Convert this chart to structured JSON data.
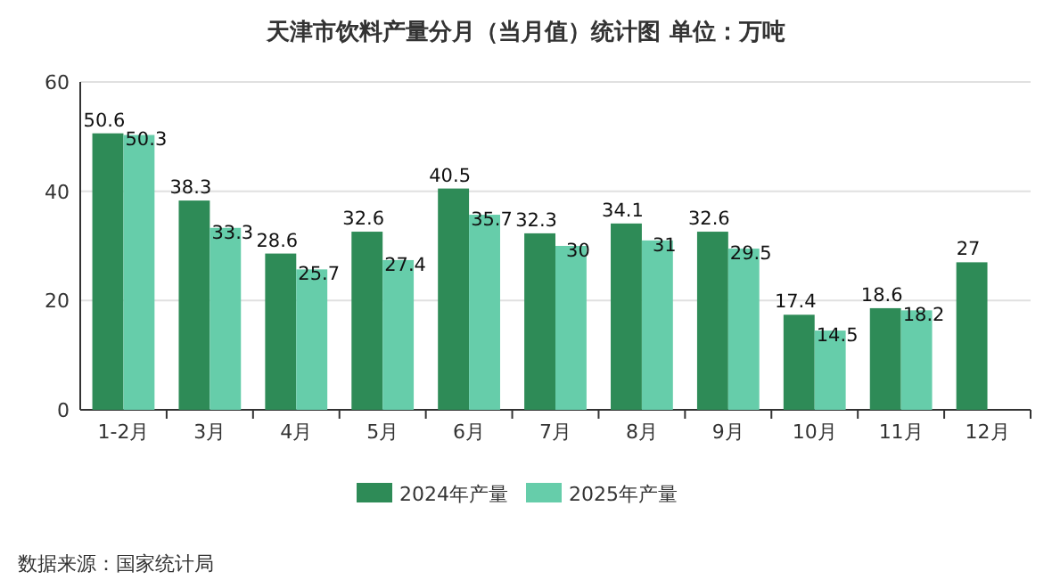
{
  "chart_data": {
    "type": "bar",
    "title": "天津市饮料产量分月（当月值）统计图 单位：万吨",
    "categories": [
      "1-2月",
      "3月",
      "4月",
      "5月",
      "6月",
      "7月",
      "8月",
      "9月",
      "10月",
      "11月",
      "12月"
    ],
    "series": [
      {
        "name": "2024年产量",
        "color": "#2e8b57",
        "values": [
          50.6,
          38.3,
          28.6,
          32.6,
          40.5,
          32.3,
          34.1,
          32.6,
          17.4,
          18.6,
          27
        ]
      },
      {
        "name": "2025年产量",
        "color": "#66cdaa",
        "values": [
          50.3,
          33.3,
          25.7,
          27.4,
          35.7,
          30,
          31,
          29.5,
          14.5,
          18.2,
          null
        ]
      }
    ],
    "ylim": [
      0,
      60
    ],
    "yticks": [
      0,
      20,
      40,
      60
    ],
    "grid": "y",
    "legend": "bottom",
    "data_labels": true,
    "annotations": [
      "数据来源：国家统计局"
    ]
  }
}
